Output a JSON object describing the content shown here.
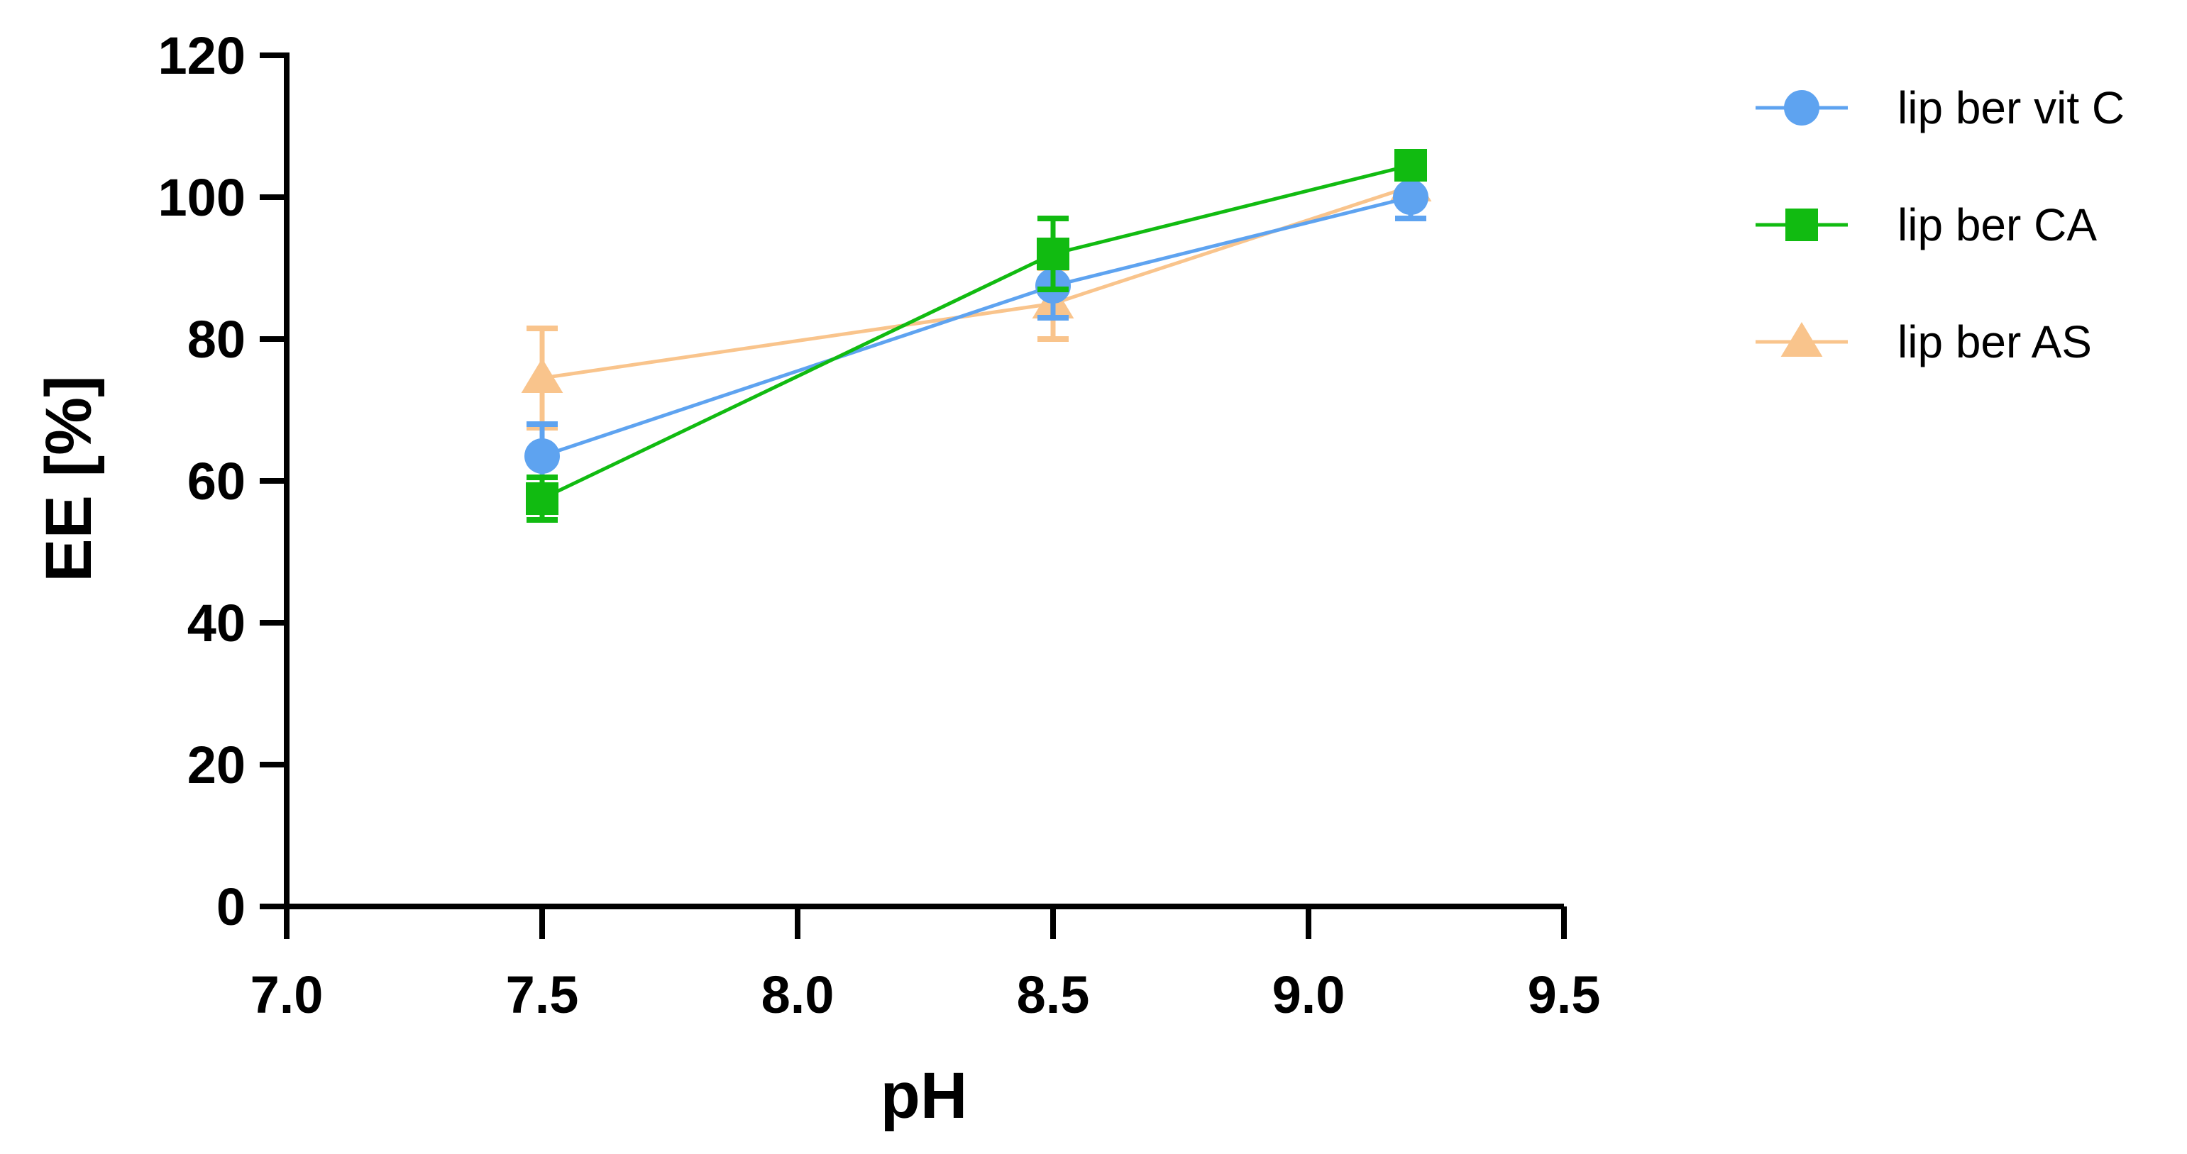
{
  "chart_data": {
    "type": "line",
    "title": "",
    "xlabel": "pH",
    "ylabel": "EE [%]",
    "xlim": [
      7.0,
      9.5
    ],
    "ylim": [
      0,
      120
    ],
    "xticks": [
      "7.0",
      "7.5",
      "8.0",
      "8.5",
      "9.0",
      "9.5"
    ],
    "yticks": [
      "0",
      "20",
      "40",
      "60",
      "80",
      "100",
      "120"
    ],
    "grid": false,
    "legend_position": "top-right outside",
    "x": [
      7.5,
      8.5,
      9.2
    ],
    "series": [
      {
        "name": "lip ber vit C",
        "marker": "circle",
        "color": "#5EA3F0",
        "values": [
          63.5,
          87.5,
          100
        ],
        "errors": [
          4.5,
          4.5,
          3
        ]
      },
      {
        "name": "lip ber CA",
        "marker": "square",
        "color": "#11BB11",
        "values": [
          57.5,
          92,
          104.5
        ],
        "errors": [
          3,
          5,
          1
        ]
      },
      {
        "name": "lip ber AS",
        "marker": "triangle",
        "color": "#F9C48C",
        "values": [
          74.5,
          85,
          101.5
        ],
        "errors": [
          7,
          5,
          2
        ]
      }
    ]
  }
}
